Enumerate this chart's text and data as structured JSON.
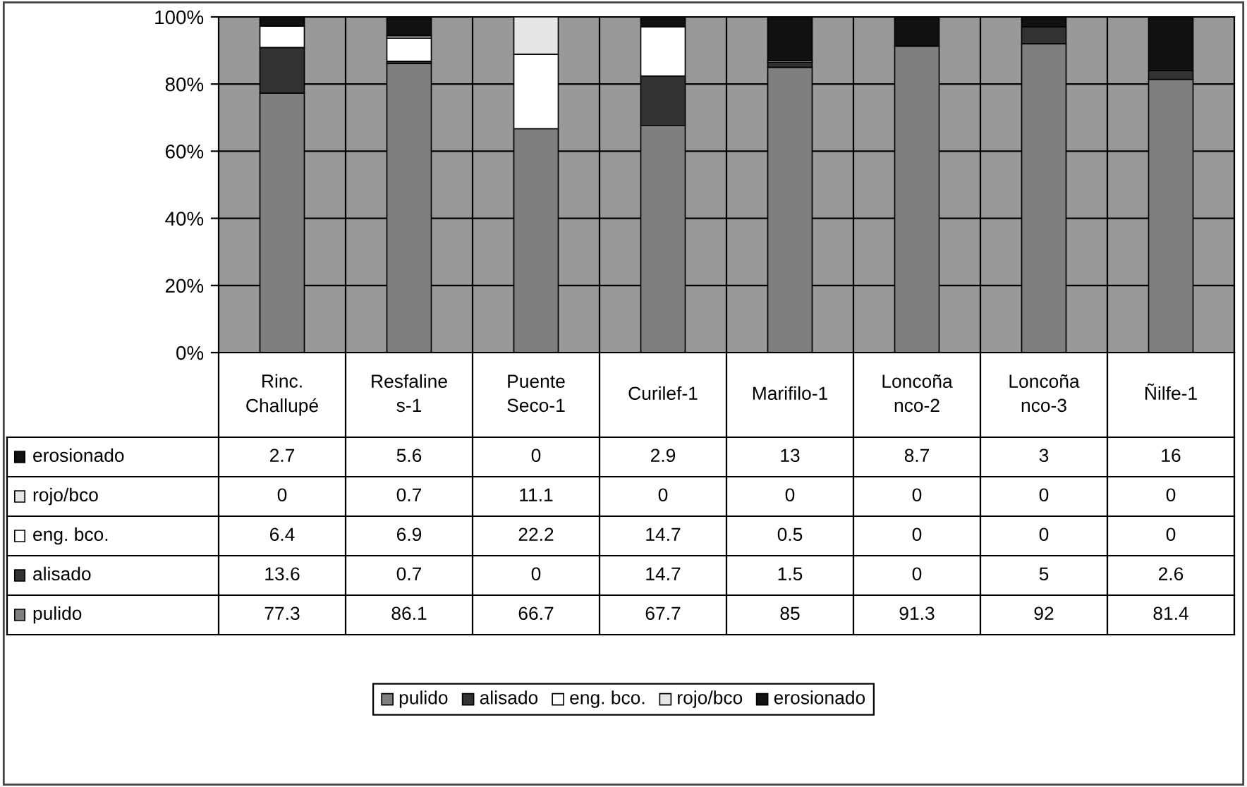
{
  "chart_data": {
    "type": "bar",
    "stacked": true,
    "categories": [
      "Rinc.\nChallupé",
      "Resfaline\ns-1",
      "Puente\nSeco-1",
      "Curilef-1",
      "Marifilo-1",
      "Loncoña\nnco-2",
      "Loncoña\nnco-3",
      "Ñilfe-1"
    ],
    "series": [
      {
        "name": "pulido",
        "color": "#7f7f7f",
        "values": [
          77.3,
          86.1,
          66.7,
          67.7,
          85,
          91.3,
          92,
          81.4
        ]
      },
      {
        "name": "alisado",
        "color": "#333333",
        "values": [
          13.6,
          0.7,
          0,
          14.7,
          1.5,
          0,
          5,
          2.6
        ]
      },
      {
        "name": "eng. bco.",
        "color": "#ffffff",
        "values": [
          6.4,
          6.9,
          22.2,
          14.7,
          0.5,
          0,
          0,
          0
        ]
      },
      {
        "name": "rojo/bco",
        "color": "#e6e6e6",
        "values": [
          0,
          0.7,
          11.1,
          0,
          0,
          0,
          0,
          0
        ]
      },
      {
        "name": "erosionado",
        "color": "#111111",
        "values": [
          2.7,
          5.6,
          0,
          2.9,
          13,
          8.7,
          3,
          16
        ]
      }
    ],
    "ylim": [
      0,
      100
    ],
    "yticks": [
      {
        "value": 0,
        "label": "0%"
      },
      {
        "value": 20,
        "label": "20%"
      },
      {
        "value": 40,
        "label": "40%"
      },
      {
        "value": 60,
        "label": "60%"
      },
      {
        "value": 80,
        "label": "80%"
      },
      {
        "value": 100,
        "label": "100%"
      }
    ],
    "grid": "y",
    "legend": "bottom",
    "data_labels": true
  }
}
